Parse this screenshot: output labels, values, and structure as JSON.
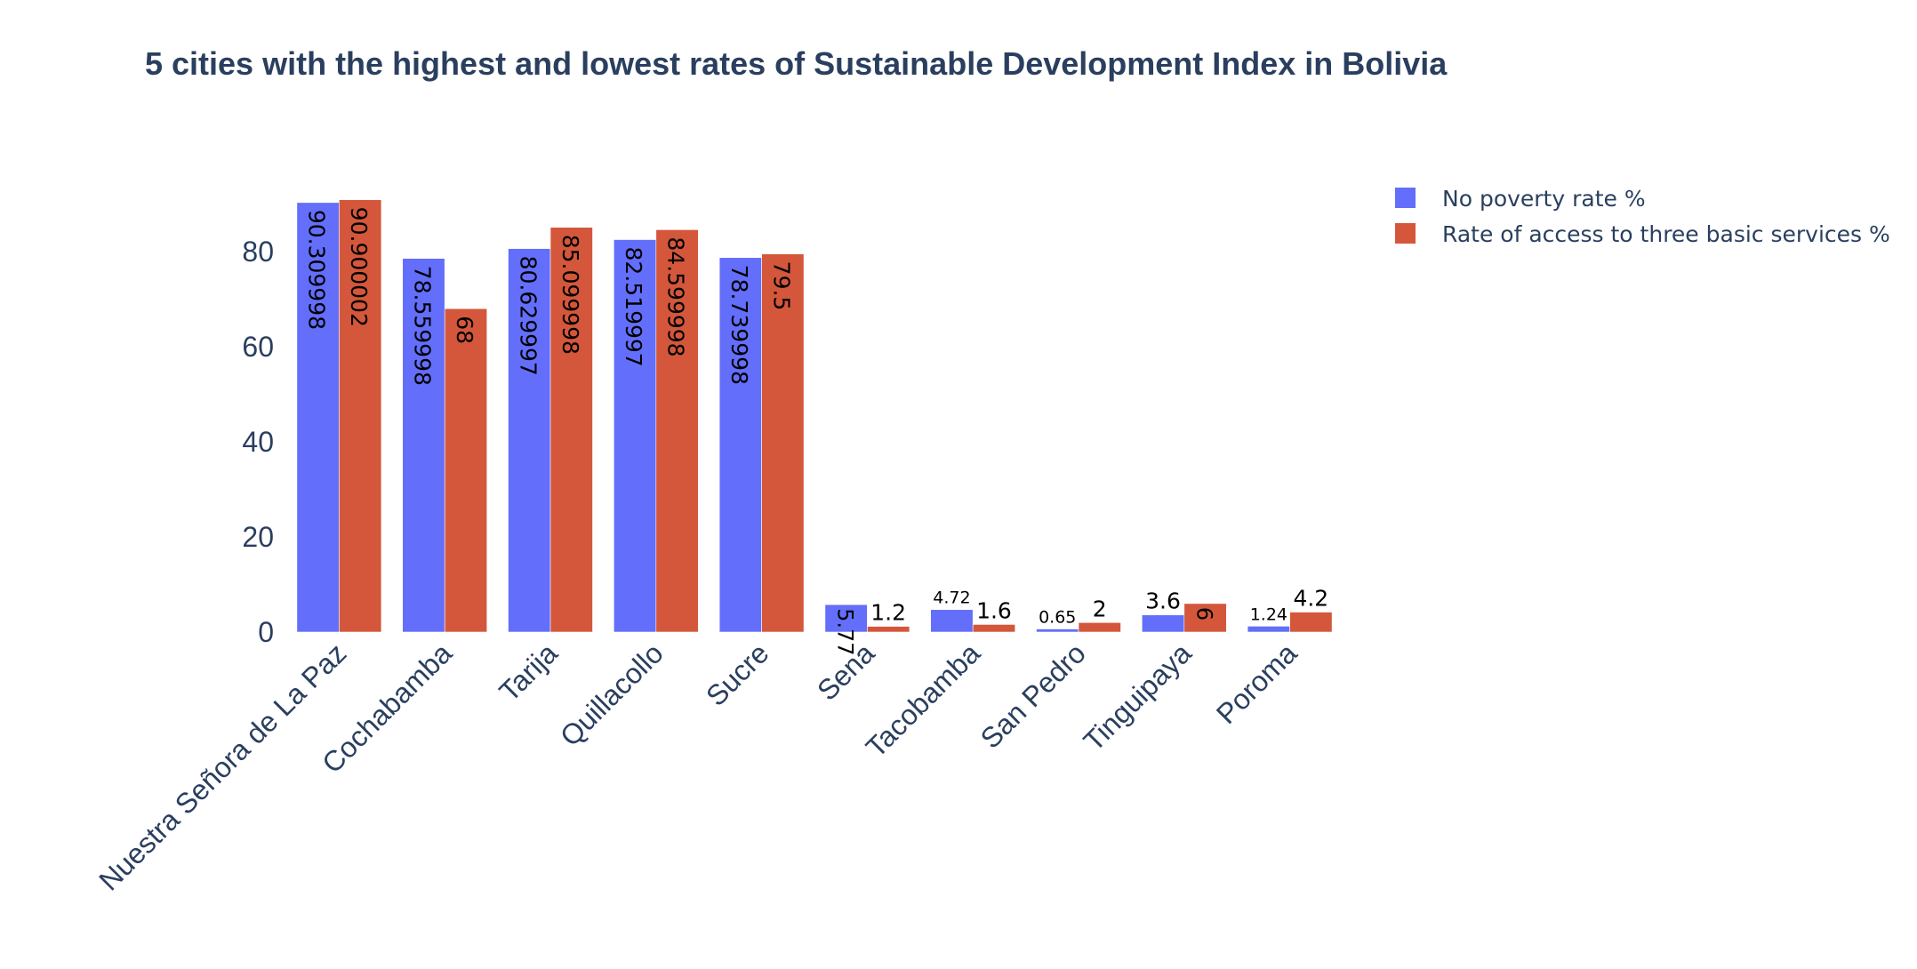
{
  "colors": {
    "series_1": "#636efa",
    "series_2": "#d4573b",
    "text": "#2a3f5f"
  },
  "chart_data": {
    "type": "bar",
    "title": "5 cities with the highest and lowest rates of Sustainable Development Index in Bolivia",
    "xlabel": "",
    "ylabel": "",
    "ylim": [
      0,
      95.7
    ],
    "yticks": [
      0,
      20,
      40,
      60,
      80
    ],
    "grid": false,
    "legend_position": "top-right",
    "categories": [
      "Nuestra Señora de La Paz",
      "Cochabamba",
      "Tarija",
      "Quillacollo",
      "Sucre",
      "Sena",
      "Tacobamba",
      "San Pedro",
      "Tinguipaya",
      "Poroma"
    ],
    "series": [
      {
        "name": "No poverty rate %",
        "values": [
          90.309998,
          78.559998,
          80.629997,
          82.519997,
          78.739998,
          5.77,
          4.72,
          0.65,
          3.6,
          1.24
        ],
        "labels": [
          "90.309998",
          "78.559998",
          "80.629997",
          "82.519997",
          "78.739998",
          "5.77",
          "4.72",
          "0.65",
          "3.6",
          "1.24"
        ]
      },
      {
        "name": "Rate of access to three basic services %",
        "values": [
          90.900002,
          68,
          85.099998,
          84.599998,
          79.5,
          1.2,
          1.6,
          2,
          6,
          4.2
        ],
        "labels": [
          "90.900002",
          "68",
          "85.099998",
          "84.599998",
          "79.5",
          "1.2",
          "1.6",
          "2",
          "6",
          "4.2"
        ]
      }
    ]
  }
}
